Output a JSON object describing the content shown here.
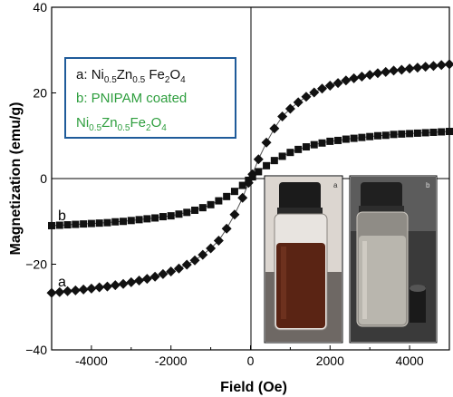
{
  "chart_data": {
    "type": "scatter",
    "xlabel": "Field (Oe)",
    "ylabel": "Magnetization (emu/g)",
    "xlim": [
      -5000,
      5000
    ],
    "ylim": [
      -40,
      40
    ],
    "x_ticks": [
      "-4000",
      "-2000",
      "0",
      "2000",
      "4000"
    ],
    "y_ticks": [
      "40",
      "20",
      "0",
      "−20",
      "−40"
    ],
    "grid": false,
    "legend": {
      "position": "top-left",
      "entries": [
        {
          "prefix": "a: ",
          "parts": [
            "Ni",
            "0.5",
            "Zn",
            "0.5",
            " Fe",
            "2",
            "O",
            "4"
          ],
          "color": "#111111"
        },
        {
          "line1": "b: PNIPAM coated",
          "parts": [
            "Ni",
            "0.5",
            "Zn",
            "0.5",
            "Fe",
            "2",
            "O",
            "4"
          ],
          "color": "#2e9e3e"
        }
      ]
    },
    "series": [
      {
        "label": "a",
        "marker": "diamond",
        "color": "#111111",
        "points": [
          [
            -5000,
            -26.7
          ],
          [
            -4800,
            -26.5
          ],
          [
            -4600,
            -26.3
          ],
          [
            -4400,
            -26.1
          ],
          [
            -4200,
            -25.9
          ],
          [
            -4000,
            -25.7
          ],
          [
            -3800,
            -25.4
          ],
          [
            -3600,
            -25.2
          ],
          [
            -3400,
            -24.9
          ],
          [
            -3200,
            -24.6
          ],
          [
            -3000,
            -24.2
          ],
          [
            -2800,
            -23.8
          ],
          [
            -2600,
            -23.4
          ],
          [
            -2400,
            -22.9
          ],
          [
            -2200,
            -22.3
          ],
          [
            -2000,
            -21.7
          ],
          [
            -1800,
            -21.0
          ],
          [
            -1600,
            -20.1
          ],
          [
            -1400,
            -19.1
          ],
          [
            -1200,
            -17.8
          ],
          [
            -1000,
            -16.3
          ],
          [
            -800,
            -14.5
          ],
          [
            -600,
            -11.7
          ],
          [
            -400,
            -8.4
          ],
          [
            -200,
            -4.5
          ],
          [
            -50,
            -1.0
          ],
          [
            50,
            1.0
          ],
          [
            200,
            4.5
          ],
          [
            400,
            8.4
          ],
          [
            600,
            11.7
          ],
          [
            800,
            14.5
          ],
          [
            1000,
            16.3
          ],
          [
            1200,
            17.8
          ],
          [
            1400,
            19.1
          ],
          [
            1600,
            20.1
          ],
          [
            1800,
            21.0
          ],
          [
            2000,
            21.7
          ],
          [
            2200,
            22.3
          ],
          [
            2400,
            22.9
          ],
          [
            2600,
            23.4
          ],
          [
            2800,
            23.8
          ],
          [
            3000,
            24.2
          ],
          [
            3200,
            24.6
          ],
          [
            3400,
            24.9
          ],
          [
            3600,
            25.2
          ],
          [
            3800,
            25.4
          ],
          [
            4000,
            25.7
          ],
          [
            4200,
            25.9
          ],
          [
            4400,
            26.1
          ],
          [
            4600,
            26.3
          ],
          [
            4800,
            26.5
          ],
          [
            5000,
            26.7
          ]
        ]
      },
      {
        "label": "b",
        "marker": "square",
        "color": "#111111",
        "points": [
          [
            -5000,
            -11.0
          ],
          [
            -4800,
            -10.9
          ],
          [
            -4600,
            -10.8
          ],
          [
            -4400,
            -10.7
          ],
          [
            -4200,
            -10.6
          ],
          [
            -4000,
            -10.5
          ],
          [
            -3800,
            -10.4
          ],
          [
            -3600,
            -10.3
          ],
          [
            -3400,
            -10.1
          ],
          [
            -3200,
            -10.0
          ],
          [
            -3000,
            -9.8
          ],
          [
            -2800,
            -9.6
          ],
          [
            -2600,
            -9.4
          ],
          [
            -2400,
            -9.2
          ],
          [
            -2200,
            -8.9
          ],
          [
            -2000,
            -8.7
          ],
          [
            -1800,
            -8.3
          ],
          [
            -1600,
            -7.9
          ],
          [
            -1400,
            -7.4
          ],
          [
            -1200,
            -6.8
          ],
          [
            -1000,
            -6.1
          ],
          [
            -800,
            -5.2
          ],
          [
            -600,
            -4.2
          ],
          [
            -400,
            -3.0
          ],
          [
            -200,
            -1.6
          ],
          [
            -50,
            -0.4
          ],
          [
            50,
            0.4
          ],
          [
            200,
            1.6
          ],
          [
            400,
            3.0
          ],
          [
            600,
            4.2
          ],
          [
            800,
            5.2
          ],
          [
            1000,
            6.1
          ],
          [
            1200,
            6.8
          ],
          [
            1400,
            7.4
          ],
          [
            1600,
            7.9
          ],
          [
            1800,
            8.3
          ],
          [
            2000,
            8.7
          ],
          [
            2200,
            8.9
          ],
          [
            2400,
            9.2
          ],
          [
            2600,
            9.4
          ],
          [
            2800,
            9.6
          ],
          [
            3000,
            9.8
          ],
          [
            3200,
            10.0
          ],
          [
            3400,
            10.1
          ],
          [
            3600,
            10.3
          ],
          [
            3800,
            10.4
          ],
          [
            4000,
            10.5
          ],
          [
            4200,
            10.6
          ],
          [
            4400,
            10.7
          ],
          [
            4600,
            10.8
          ],
          [
            4800,
            10.9
          ],
          [
            5000,
            11.0
          ]
        ]
      }
    ],
    "inset_photos": [
      {
        "label": "a",
        "liquid_color": "#5a2414"
      },
      {
        "label": "b",
        "liquid_color": "#b9b6ae"
      }
    ]
  }
}
